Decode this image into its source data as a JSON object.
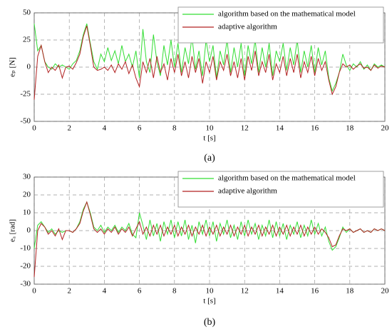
{
  "chart_data": [
    {
      "type": "line",
      "caption": "(a)",
      "xlabel": "t [s]",
      "ylabel": "eₚ [N]",
      "grid": true,
      "legend": "upper right",
      "x": [
        0,
        0.2,
        0.4,
        0.6,
        0.8,
        1,
        1.2,
        1.4,
        1.6,
        1.8,
        2,
        2.2,
        2.4,
        2.6,
        2.8,
        3,
        3.2,
        3.4,
        3.6,
        3.8,
        4,
        4.2,
        4.4,
        4.6,
        4.8,
        5,
        5.2,
        5.4,
        5.6,
        5.8,
        6,
        6.2,
        6.4,
        6.6,
        6.8,
        7,
        7.2,
        7.4,
        7.6,
        7.8,
        8,
        8.2,
        8.4,
        8.6,
        8.8,
        9,
        9.2,
        9.4,
        9.6,
        9.8,
        10,
        10.2,
        10.4,
        10.6,
        10.8,
        11,
        11.2,
        11.4,
        11.6,
        11.8,
        12,
        12.2,
        12.4,
        12.6,
        12.8,
        13,
        13.2,
        13.4,
        13.6,
        13.8,
        14,
        14.2,
        14.4,
        14.6,
        14.8,
        15,
        15.2,
        15.4,
        15.6,
        15.8,
        16,
        16.2,
        16.4,
        16.6,
        16.8,
        17,
        17.2,
        17.4,
        17.6,
        17.8,
        18,
        18.2,
        18.4,
        18.6,
        18.8,
        19,
        19.2,
        19.4,
        19.6,
        19.8,
        20
      ],
      "xlim": [
        0,
        20
      ],
      "xticks": [
        0,
        2,
        4,
        6,
        8,
        10,
        12,
        14,
        16,
        18,
        20
      ],
      "ylim": [
        -50,
        50
      ],
      "yticks": [
        -50,
        -25,
        0,
        25,
        50
      ],
      "series": [
        {
          "name": "algorithm based on the mathematical model",
          "color": "#33dd33",
          "values": [
            40,
            15,
            20,
            5,
            0,
            -2,
            3,
            0,
            2,
            0,
            -2,
            3,
            6,
            15,
            30,
            40,
            22,
            5,
            -2,
            12,
            5,
            18,
            6,
            15,
            3,
            20,
            5,
            12,
            0,
            15,
            -10,
            35,
            5,
            -5,
            30,
            5,
            -8,
            20,
            2,
            25,
            0,
            22,
            -5,
            18,
            3,
            28,
            -2,
            15,
            -8,
            25,
            5,
            20,
            -10,
            15,
            2,
            25,
            -5,
            18,
            0,
            22,
            -8,
            20,
            3,
            25,
            -5,
            18,
            0,
            22,
            -8,
            15,
            5,
            22,
            -3,
            18,
            2,
            25,
            -5,
            15,
            0,
            20,
            -5,
            18,
            2,
            15,
            -10,
            -22,
            -15,
            -5,
            12,
            2,
            -3,
            3,
            0,
            5,
            -2,
            2,
            -3,
            3,
            0,
            2,
            0
          ]
        },
        {
          "name": "adaptive algorithm",
          "color": "#b22222",
          "values": [
            -30,
            10,
            20,
            5,
            -5,
            0,
            -3,
            2,
            -10,
            0,
            1,
            -2,
            4,
            12,
            28,
            38,
            20,
            0,
            -3,
            -2,
            0,
            -3,
            2,
            -5,
            3,
            -2,
            5,
            -6,
            2,
            -10,
            -18,
            5,
            -5,
            8,
            -10,
            10,
            -5,
            3,
            -12,
            8,
            -5,
            12,
            -8,
            5,
            -10,
            10,
            -5,
            8,
            -15,
            5,
            -5,
            10,
            -12,
            5,
            -3,
            12,
            -8,
            5,
            -10,
            8,
            -12,
            10,
            -3,
            15,
            -8,
            5,
            -5,
            12,
            -12,
            3,
            -5,
            10,
            -8,
            8,
            -5,
            12,
            -10,
            5,
            -5,
            10,
            -8,
            8,
            -3,
            5,
            -12,
            -25,
            -18,
            -5,
            3,
            0,
            2,
            -2,
            1,
            3,
            -1,
            0,
            -3,
            2,
            -1,
            1,
            0
          ]
        }
      ]
    },
    {
      "type": "line",
      "caption": "(b)",
      "xlabel": "t [s]",
      "ylabel": "eₐ [rad]",
      "grid": true,
      "legend": "upper right",
      "x": [
        0,
        0.2,
        0.4,
        0.6,
        0.8,
        1,
        1.2,
        1.4,
        1.6,
        1.8,
        2,
        2.2,
        2.4,
        2.6,
        2.8,
        3,
        3.2,
        3.4,
        3.6,
        3.8,
        4,
        4.2,
        4.4,
        4.6,
        4.8,
        5,
        5.2,
        5.4,
        5.6,
        5.8,
        6,
        6.2,
        6.4,
        6.6,
        6.8,
        7,
        7.2,
        7.4,
        7.6,
        7.8,
        8,
        8.2,
        8.4,
        8.6,
        8.8,
        9,
        9.2,
        9.4,
        9.6,
        9.8,
        10,
        10.2,
        10.4,
        10.6,
        10.8,
        11,
        11.2,
        11.4,
        11.6,
        11.8,
        12,
        12.2,
        12.4,
        12.6,
        12.8,
        13,
        13.2,
        13.4,
        13.6,
        13.8,
        14,
        14.2,
        14.4,
        14.6,
        14.8,
        15,
        15.2,
        15.4,
        15.6,
        15.8,
        16,
        16.2,
        16.4,
        16.6,
        16.8,
        17,
        17.2,
        17.4,
        17.6,
        17.8,
        18,
        18.2,
        18.4,
        18.6,
        18.8,
        19,
        19.2,
        19.4,
        19.6,
        19.8,
        20
      ],
      "xlim": [
        0,
        20
      ],
      "xticks": [
        0,
        2,
        4,
        6,
        8,
        10,
        12,
        14,
        16,
        18,
        20
      ],
      "ylim": [
        -30,
        30
      ],
      "yticks": [
        -30,
        -20,
        -10,
        0,
        10,
        20,
        30
      ],
      "series": [
        {
          "name": "algorithm based on the mathematical model",
          "color": "#33dd33",
          "values": [
            -10,
            3,
            5,
            2,
            -1,
            1,
            -2,
            0,
            -1,
            0,
            0,
            -1,
            1,
            5,
            12,
            16,
            10,
            2,
            0,
            3,
            -1,
            2,
            0,
            3,
            -1,
            2,
            0,
            4,
            -2,
            -4,
            10,
            3,
            -5,
            6,
            -3,
            4,
            -6,
            5,
            -2,
            6,
            -4,
            5,
            -3,
            6,
            -5,
            3,
            -7,
            5,
            -2,
            6,
            -3,
            5,
            -6,
            4,
            -2,
            6,
            -4,
            3,
            -5,
            5,
            -3,
            6,
            -2,
            4,
            -5,
            3,
            -3,
            6,
            -4,
            5,
            -3,
            4,
            -5,
            3,
            -2,
            5,
            -4,
            3,
            -3,
            6,
            -2,
            4,
            -3,
            2,
            -6,
            -11,
            -9,
            -4,
            2,
            -1,
            1,
            -1,
            0,
            1,
            -1,
            0,
            -1,
            1,
            0,
            1,
            0
          ]
        },
        {
          "name": "adaptive algorithm",
          "color": "#b22222",
          "values": [
            -26,
            0,
            4,
            2,
            -2,
            0,
            -3,
            1,
            -5,
            0,
            0,
            -1,
            1,
            4,
            11,
            16,
            9,
            1,
            -1,
            1,
            -2,
            1,
            -1,
            2,
            -2,
            1,
            -1,
            2,
            -3,
            1,
            5,
            -2,
            2,
            -3,
            3,
            -2,
            3,
            -3,
            2,
            -2,
            3,
            -3,
            2,
            -2,
            3,
            -3,
            2,
            -2,
            3,
            -3,
            2,
            -2,
            3,
            -3,
            2,
            -2,
            3,
            -3,
            2,
            -2,
            3,
            -3,
            2,
            -2,
            3,
            -3,
            2,
            -2,
            3,
            -3,
            2,
            -2,
            3,
            -3,
            2,
            -2,
            3,
            -3,
            2,
            -2,
            2,
            -2,
            1,
            -1,
            -4,
            -9,
            -8,
            -3,
            1,
            0,
            1,
            -1,
            0,
            1,
            -1,
            0,
            -1,
            1,
            0,
            1,
            0
          ]
        }
      ]
    }
  ]
}
